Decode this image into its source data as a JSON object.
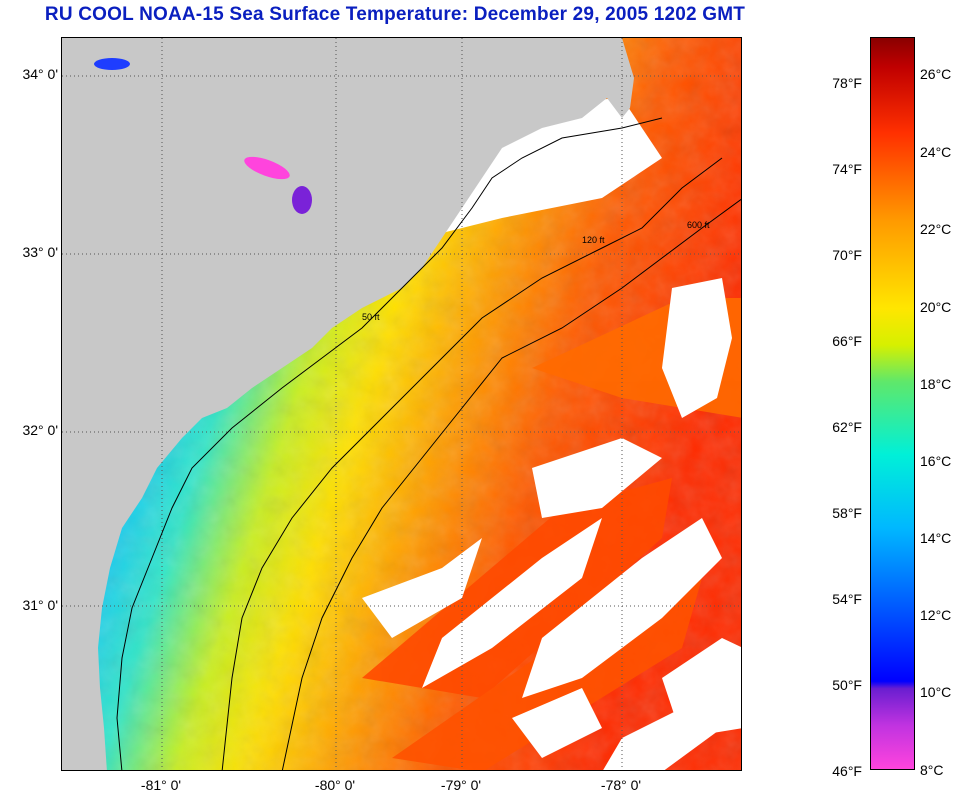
{
  "title": "RU COOL  NOAA-15  Sea Surface Temperature:  December 29, 2005 1202 GMT",
  "lat_labels": [
    "34° 0'",
    "33° 0'",
    "32° 0'",
    "31° 0'"
  ],
  "lon_labels": [
    "-81° 0'",
    "-80° 0'",
    "-79° 0'",
    "-78° 0'"
  ],
  "isobath_labels": [
    "50 ft",
    "120 ft",
    "600 ft"
  ],
  "colorbar": {
    "fahrenheit": [
      "78°F",
      "74°F",
      "70°F",
      "66°F",
      "62°F",
      "58°F",
      "54°F",
      "50°F",
      "46°F"
    ],
    "celsius": [
      "26°C",
      "24°C",
      "22°C",
      "20°C",
      "18°C",
      "16°C",
      "14°C",
      "12°C",
      "10°C",
      "8°C"
    ]
  },
  "colors": {
    "title": "#0a1fbf",
    "land": "#c8c8c8",
    "cloud": "#ffffff"
  }
}
